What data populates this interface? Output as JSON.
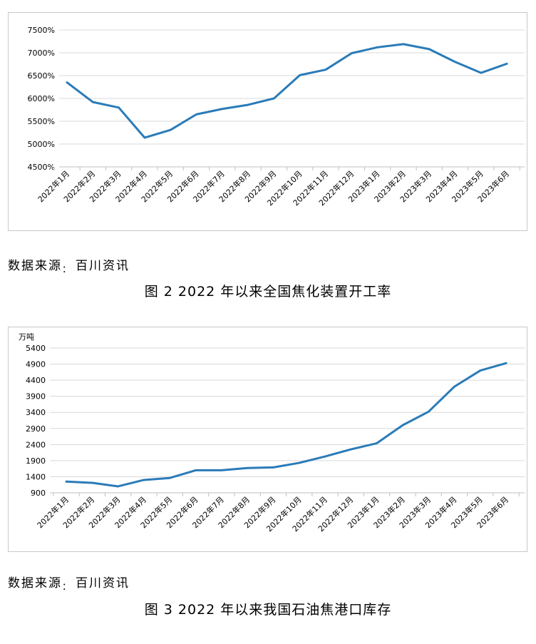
{
  "charts": [
    {
      "chart_data": {
        "type": "line",
        "title": "",
        "xlabel": "",
        "ylabel": "",
        "unit": "",
        "categories": [
          "2022年1月",
          "2022年2月",
          "2022年3月",
          "2022年4月",
          "2022年5月",
          "2022年6月",
          "2022年7月",
          "2022年8月",
          "2022年9月",
          "2022年10月",
          "2022年11月",
          "2022年12月",
          "2023年1月",
          "2023年2月",
          "2023年3月",
          "2023年4月",
          "2023年5月",
          "2023年6月"
        ],
        "series": [
          {
            "values": [
              6350,
              5920,
              5800,
              5140,
              5310,
              5650,
              5770,
              5860,
              6000,
              6510,
              6630,
              6990,
              7120,
              7190,
              7080,
              6800,
              6560,
              6760
            ]
          }
        ],
        "ylim": [
          4500,
          7500
        ],
        "yticks": [
          "4500%",
          "5000%",
          "5500%",
          "6000%",
          "6500%",
          "7000%",
          "7500%"
        ],
        "ytick_values": [
          4500,
          5000,
          5500,
          6000,
          6500,
          7000,
          7500
        ],
        "grid": true,
        "line_color": "#2a7bb8"
      },
      "source_label": "数据来源",
      "source_colon": "：",
      "source_name": "百川资讯",
      "caption": "图 2  2022 年以来全国焦化装置开工率"
    },
    {
      "chart_data": {
        "type": "line",
        "title": "",
        "xlabel": "",
        "ylabel": "",
        "unit": "万吨",
        "categories": [
          "2022年1月",
          "2022年2月",
          "2022年3月",
          "2022年4月",
          "2022年5月",
          "2022年6月",
          "2022年7月",
          "2022年8月",
          "2022年9月",
          "2022年10月",
          "2022年11月",
          "2022年12月",
          "2023年1月",
          "2023年2月",
          "2023年3月",
          "2023年4月",
          "2023年5月",
          "2023年6月"
        ],
        "series": [
          {
            "values": [
              1250,
              1210,
              1100,
              1300,
              1360,
              1600,
              1600,
              1670,
              1690,
              1830,
              2030,
              2250,
              2440,
              3000,
              3420,
              4200,
              4700,
              4930
            ]
          }
        ],
        "ylim": [
          900,
          5400
        ],
        "yticks": [
          "900",
          "1400",
          "1900",
          "2400",
          "2900",
          "3400",
          "3900",
          "4400",
          "4900",
          "5400"
        ],
        "ytick_values": [
          900,
          1400,
          1900,
          2400,
          2900,
          3400,
          3900,
          4400,
          4900,
          5400
        ],
        "grid": true,
        "line_color": "#2a7bb8"
      },
      "source_label": "数据来源",
      "source_colon": "：",
      "source_name": "百川资讯",
      "caption": "图 3  2022 年以来我国石油焦港口库存"
    }
  ]
}
